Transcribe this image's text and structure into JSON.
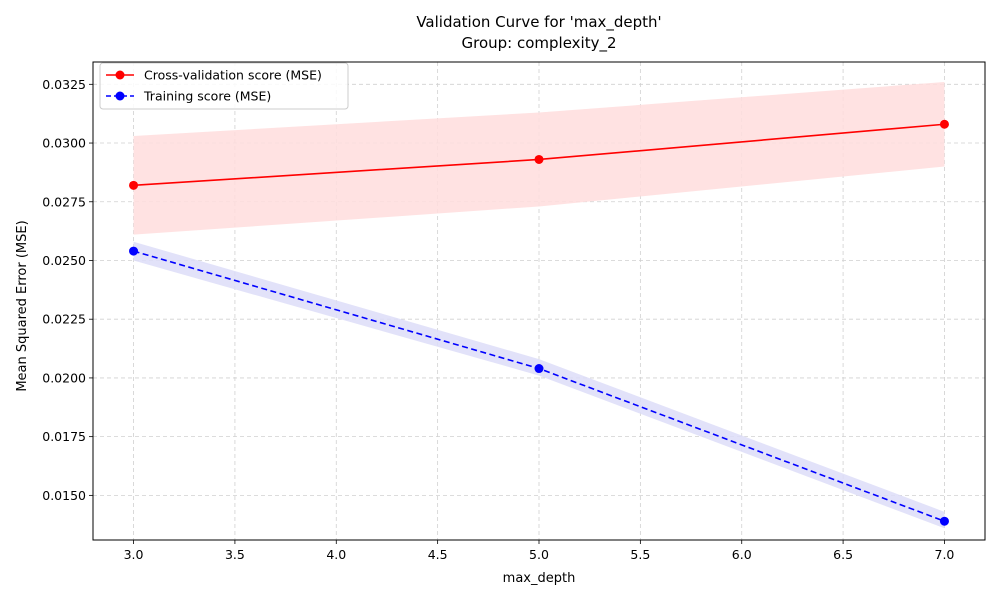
{
  "chart_data": {
    "type": "line",
    "title": "Validation Curve for 'max_depth'",
    "subtitle": "Group: complexity_2",
    "xlabel": "max_depth",
    "ylabel": "Mean Squared Error (MSE)",
    "xlim": [
      2.8,
      7.2
    ],
    "ylim": [
      0.0131,
      0.03345
    ],
    "x_ticks": [
      3.0,
      3.5,
      4.0,
      4.5,
      5.0,
      5.5,
      6.0,
      6.5,
      7.0
    ],
    "x_tick_labels": [
      "3.0",
      "3.5",
      "4.0",
      "4.5",
      "5.0",
      "5.5",
      "6.0",
      "6.5",
      "7.0"
    ],
    "y_ticks": [
      0.015,
      0.0175,
      0.02,
      0.0225,
      0.025,
      0.0275,
      0.03,
      0.0325
    ],
    "y_tick_labels": [
      "0.0150",
      "0.0175",
      "0.0200",
      "0.0225",
      "0.0250",
      "0.0275",
      "0.0300",
      "0.0325"
    ],
    "grid": true,
    "legend_position": "top-left",
    "x": [
      3,
      5,
      7
    ],
    "series": [
      {
        "name": "Cross-validation score (MSE)",
        "values": [
          0.0282,
          0.0293,
          0.0308
        ],
        "band_lower": [
          0.0261,
          0.0273,
          0.029
        ],
        "band_upper": [
          0.0303,
          0.0313,
          0.0326
        ],
        "color": "#ff0000",
        "band_color": "#ffdddd",
        "line_style": "solid",
        "marker": "circle"
      },
      {
        "name": "Training score (MSE)",
        "values": [
          0.0254,
          0.0204,
          0.0139
        ],
        "band_lower": [
          0.025,
          0.0201,
          0.0136
        ],
        "band_upper": [
          0.0258,
          0.0208,
          0.0143
        ],
        "color": "#0000ff",
        "band_color": "#ddddf8",
        "line_style": "dashed",
        "marker": "circle"
      }
    ]
  }
}
